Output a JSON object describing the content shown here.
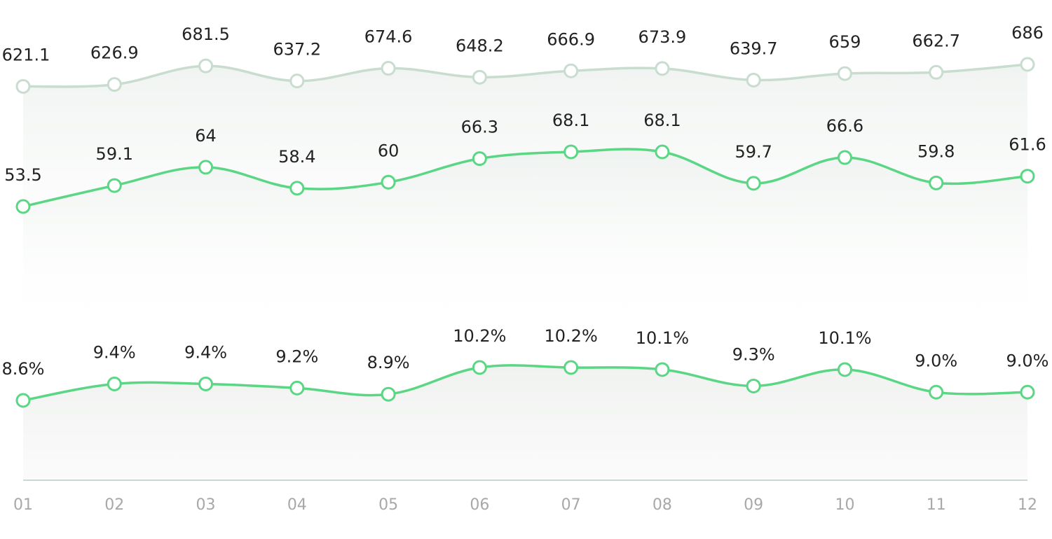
{
  "chart_data": {
    "type": "line",
    "categories": [
      "01",
      "02",
      "03",
      "04",
      "05",
      "06",
      "07",
      "08",
      "09",
      "10",
      "11",
      "12"
    ],
    "series": [
      {
        "values": [
          621.1,
          626.9,
          681.5,
          637.2,
          674.6,
          648.2,
          666.9,
          673.9,
          639.7,
          659,
          662.7,
          686
        ],
        "labels": [
          "621.1",
          "626.9",
          "681.5",
          "637.2",
          "674.6",
          "648.2",
          "666.9",
          "673.9",
          "639.7",
          "659",
          "662.7",
          "686"
        ],
        "color": "#c8dccf"
      },
      {
        "values": [
          53.5,
          59.1,
          64,
          58.4,
          60,
          66.3,
          68.1,
          68.1,
          59.7,
          66.6,
          59.8,
          61.6
        ],
        "labels": [
          "53.5",
          "59.1",
          "64",
          "58.4",
          "60",
          "66.3",
          "68.1",
          "68.1",
          "59.7",
          "66.6",
          "59.8",
          "61.6"
        ],
        "color": "#5ad685"
      },
      {
        "values": [
          8.6,
          9.4,
          9.4,
          9.2,
          8.9,
          10.2,
          10.2,
          10.1,
          9.3,
          10.1,
          9.0,
          9.0
        ],
        "labels": [
          "8.6%",
          "9.4%",
          "9.4%",
          "9.2%",
          "8.9%",
          "10.2%",
          "10.2%",
          "10.1%",
          "9.3%",
          "10.1%",
          "9.0%",
          "9.0%"
        ],
        "color": "#5ad685"
      }
    ],
    "title": "",
    "xlabel": "",
    "ylabel": "",
    "grid": false,
    "legend": "none"
  }
}
